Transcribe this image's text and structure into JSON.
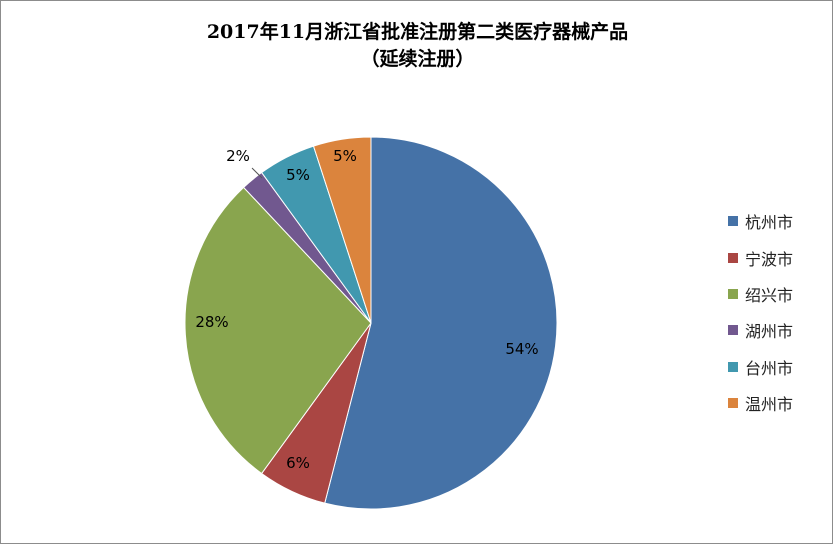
{
  "chart_data": {
    "type": "pie",
    "title_line1": "2017年11月浙江省批准注册第二类医疗器械产品",
    "title_line2": "（延续注册）",
    "unit": "%",
    "categories": [
      "杭州市",
      "宁波市",
      "绍兴市",
      "湖州市",
      "台州市",
      "温州市"
    ],
    "values": [
      54,
      6,
      28,
      2,
      5,
      5
    ],
    "data_labels": [
      "54%",
      "6%",
      "28%",
      "2%",
      "5%",
      "5%"
    ],
    "colors": [
      "#4572a7",
      "#aa4643",
      "#89a54e",
      "#71588f",
      "#4198af",
      "#db843d"
    ],
    "legend_position": "right",
    "start_angle": "12 o'clock, clockwise"
  }
}
